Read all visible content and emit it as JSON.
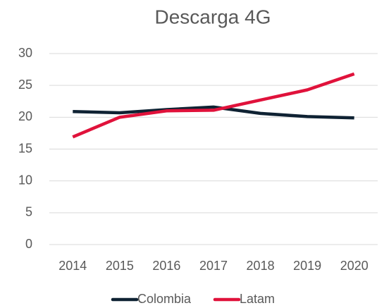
{
  "chart_data": {
    "type": "line",
    "title": "Descarga 4G",
    "categories": [
      "2014",
      "2015",
      "2016",
      "2017",
      "2018",
      "2019",
      "2020"
    ],
    "series": [
      {
        "name": "Colombia",
        "color": "#0f2233",
        "values": [
          20.9,
          20.7,
          21.2,
          21.6,
          20.6,
          20.1,
          19.9
        ]
      },
      {
        "name": "Latam",
        "color": "#e0123b",
        "values": [
          16.9,
          20.0,
          21.0,
          21.1,
          22.7,
          24.3,
          26.8
        ]
      }
    ],
    "ylim": [
      0,
      30
    ],
    "yticks": [
      0,
      5,
      10,
      15,
      20,
      25,
      30
    ],
    "grid": true,
    "legend": "bottom"
  }
}
